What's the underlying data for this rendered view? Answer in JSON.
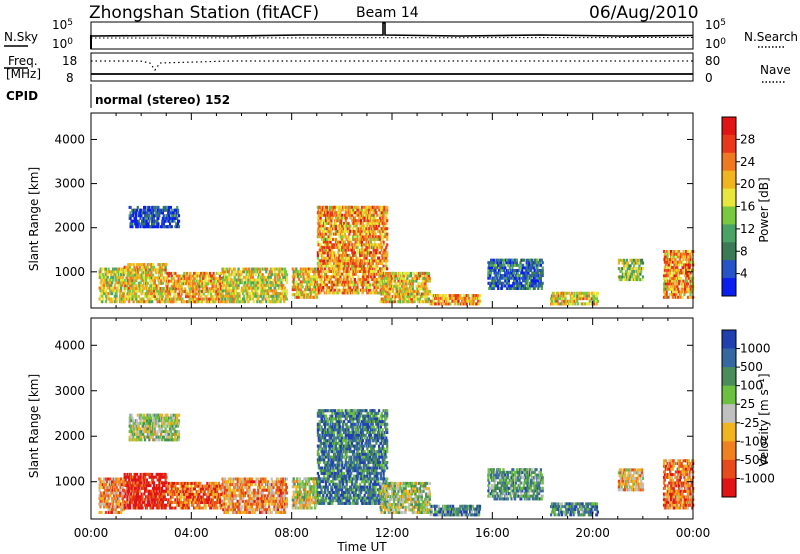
{
  "header": {
    "station": "Zhongshan Station (fitACF)",
    "beam": "Beam 14",
    "date": "06/Aug/2010"
  },
  "summary_panels": {
    "nsky_label": "N.Sky",
    "nsearch_label": "N.Search",
    "nsky_ticks": [
      "10^5",
      "10^0"
    ],
    "nsearch_ticks": [
      "10^5",
      "10^0"
    ],
    "freq_label_1": "Freq.",
    "freq_label_2": "[MHz]",
    "freq_ticks": [
      "18",
      "8"
    ],
    "nave_label": "Nave",
    "nave_ticks": [
      "80",
      "0"
    ],
    "cpid_label": "CPID",
    "cpid_text": "normal (stereo) 152"
  },
  "chart_data": [
    {
      "type": "heatmap",
      "name": "power",
      "ylabel": "Slant Range [km]",
      "xlabel": "",
      "ylim": [
        180,
        4600
      ],
      "y_ticks": [
        "4000",
        "3000",
        "2000",
        "1000"
      ],
      "colorbar_label": "Power [dB]",
      "colorbar_ticks": [
        "28",
        "24",
        "20",
        "16",
        "12",
        "8",
        "4"
      ],
      "colorbar_colors": [
        "#0a1ef0",
        "#2553c8",
        "#3a7a55",
        "#4aa264",
        "#78c840",
        "#e8e83c",
        "#f0b41e",
        "#f07820",
        "#e83a1a",
        "#e01414"
      ],
      "echo_clusters": [
        {
          "t": [
            0.3,
            1.3
          ],
          "r": [
            300,
            1100
          ],
          "level": 0.55
        },
        {
          "t": [
            1.3,
            3.0
          ],
          "r": [
            300,
            1200
          ],
          "level": 0.6
        },
        {
          "t": [
            1.5,
            3.5
          ],
          "r": [
            2000,
            2500
          ],
          "level": 0.1
        },
        {
          "t": [
            3.0,
            5.2
          ],
          "r": [
            300,
            1000
          ],
          "level": 0.65
        },
        {
          "t": [
            5.2,
            7.8
          ],
          "r": [
            300,
            1100
          ],
          "level": 0.55
        },
        {
          "t": [
            8.0,
            9.0
          ],
          "r": [
            400,
            1100
          ],
          "level": 0.6
        },
        {
          "t": [
            9.0,
            11.8
          ],
          "r": [
            500,
            2500
          ],
          "level": 0.7
        },
        {
          "t": [
            11.5,
            13.5
          ],
          "r": [
            300,
            1000
          ],
          "level": 0.6
        },
        {
          "t": [
            13.5,
            15.5
          ],
          "r": [
            250,
            500
          ],
          "level": 0.7
        },
        {
          "t": [
            15.8,
            18.0
          ],
          "r": [
            600,
            1300
          ],
          "level": 0.2
        },
        {
          "t": [
            18.3,
            20.2
          ],
          "r": [
            250,
            550
          ],
          "level": 0.6
        },
        {
          "t": [
            21.0,
            22.0
          ],
          "r": [
            800,
            1300
          ],
          "level": 0.45
        },
        {
          "t": [
            22.8,
            24.0
          ],
          "r": [
            400,
            1500
          ],
          "level": 0.7
        }
      ]
    },
    {
      "type": "heatmap",
      "name": "velocity",
      "ylabel": "Slant Range [km]",
      "xlabel": "Time UT",
      "xlim": [
        0,
        24
      ],
      "ylim": [
        180,
        4600
      ],
      "x_ticks": [
        "00:00",
        "04:00",
        "08:00",
        "12:00",
        "16:00",
        "20:00",
        "00:00"
      ],
      "y_ticks": [
        "4000",
        "3000",
        "2000",
        "1000"
      ],
      "colorbar_label": "Velocity [m s⁻¹]",
      "colorbar_ticks": [
        "1000",
        "500",
        "100",
        "25",
        "-25",
        "-100",
        "-500",
        "-1000"
      ],
      "colorbar_colors": [
        "#2040b0",
        "#3568a0",
        "#4a8c5a",
        "#6cc040",
        "#c0c0c0",
        "#f0b41e",
        "#f08020",
        "#e84a1a",
        "#e01414"
      ],
      "echo_clusters": [
        {
          "t": [
            0.3,
            1.3
          ],
          "r": [
            300,
            1100
          ],
          "level": 0.7
        },
        {
          "t": [
            1.3,
            3.0
          ],
          "r": [
            400,
            1200
          ],
          "level": 0.95
        },
        {
          "t": [
            1.5,
            3.5
          ],
          "r": [
            1900,
            2500
          ],
          "level": 0.45
        },
        {
          "t": [
            3.0,
            5.2
          ],
          "r": [
            400,
            1000
          ],
          "level": 0.8
        },
        {
          "t": [
            5.2,
            7.8
          ],
          "r": [
            300,
            1100
          ],
          "level": 0.7
        },
        {
          "t": [
            8.0,
            9.0
          ],
          "r": [
            400,
            1100
          ],
          "level": 0.5
        },
        {
          "t": [
            9.0,
            11.8
          ],
          "r": [
            500,
            2600
          ],
          "level": 0.2
        },
        {
          "t": [
            11.5,
            13.5
          ],
          "r": [
            300,
            1000
          ],
          "level": 0.45
        },
        {
          "t": [
            13.5,
            15.5
          ],
          "r": [
            250,
            500
          ],
          "level": 0.25
        },
        {
          "t": [
            15.8,
            18.0
          ],
          "r": [
            600,
            1300
          ],
          "level": 0.3
        },
        {
          "t": [
            18.3,
            20.2
          ],
          "r": [
            250,
            550
          ],
          "level": 0.25
        },
        {
          "t": [
            21.0,
            22.0
          ],
          "r": [
            800,
            1300
          ],
          "level": 0.6
        },
        {
          "t": [
            22.8,
            24.0
          ],
          "r": [
            400,
            1500
          ],
          "level": 0.75
        }
      ]
    }
  ]
}
